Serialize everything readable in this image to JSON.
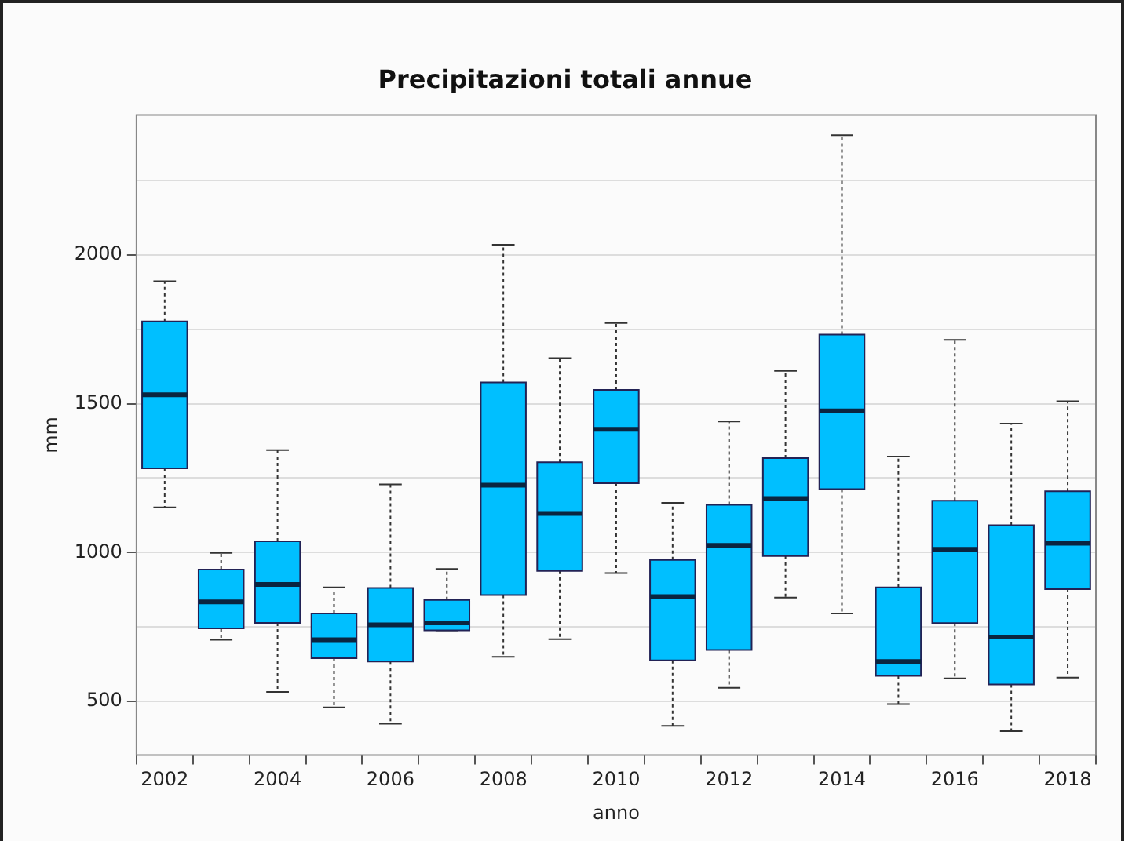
{
  "chart_data": {
    "type": "box",
    "title": "Precipitazioni totali annue",
    "xlabel": "anno",
    "ylabel": "mm",
    "categories": [
      "2002",
      null,
      "2004",
      null,
      "2006",
      null,
      "2008",
      null,
      "2010",
      null,
      "2012",
      null,
      "2014",
      null,
      "2016",
      null,
      "2018"
    ],
    "color": "#00bfff",
    "boxes": [
      {
        "low": 1152,
        "q1": 1283,
        "median": 1530,
        "q3": 1776,
        "high": 1911
      },
      {
        "low": 707,
        "q1": 745,
        "median": 834,
        "q3": 943,
        "high": 999
      },
      {
        "low": 532,
        "q1": 764,
        "median": 893,
        "q3": 1038,
        "high": 1344
      },
      {
        "low": 480,
        "q1": 645,
        "median": 707,
        "q3": 795,
        "high": 883
      },
      {
        "low": 425,
        "q1": 634,
        "median": 757,
        "q3": 881,
        "high": 1229
      },
      {
        "low": 739,
        "q1": 739,
        "median": 764,
        "q3": 841,
        "high": 945
      },
      {
        "low": 650,
        "q1": 857,
        "median": 1226,
        "q3": 1571,
        "high": 2034
      },
      {
        "low": 709,
        "q1": 938,
        "median": 1131,
        "q3": 1303,
        "high": 1653
      },
      {
        "low": 931,
        "q1": 1233,
        "median": 1414,
        "q3": 1546,
        "high": 1771
      },
      {
        "low": 418,
        "q1": 638,
        "median": 852,
        "q3": 975,
        "high": 1167
      },
      {
        "low": 546,
        "q1": 673,
        "median": 1024,
        "q3": 1160,
        "high": 1440
      },
      {
        "low": 849,
        "q1": 988,
        "median": 1181,
        "q3": 1317,
        "high": 1610
      },
      {
        "low": 795,
        "q1": 1213,
        "median": 1476,
        "q3": 1732,
        "high": 2402
      },
      {
        "low": 491,
        "q1": 586,
        "median": 634,
        "q3": 883,
        "high": 1322
      },
      {
        "low": 577,
        "q1": 763,
        "median": 1011,
        "q3": 1174,
        "high": 1714
      },
      {
        "low": 400,
        "q1": 557,
        "median": 716,
        "q3": 1092,
        "high": 1433
      },
      {
        "low": 580,
        "q1": 877,
        "median": 1031,
        "q3": 1206,
        "high": 1508
      }
    ],
    "ylim": [
      320,
      2470
    ],
    "yticks": [
      500,
      {
        "value": 750,
        "label": null
      },
      1000,
      {
        "value": 1250,
        "label": null
      },
      1500,
      {
        "value": 1750,
        "label": null
      },
      2000,
      {
        "value": 2250,
        "label": null
      }
    ],
    "grid": "y",
    "legend": false
  }
}
